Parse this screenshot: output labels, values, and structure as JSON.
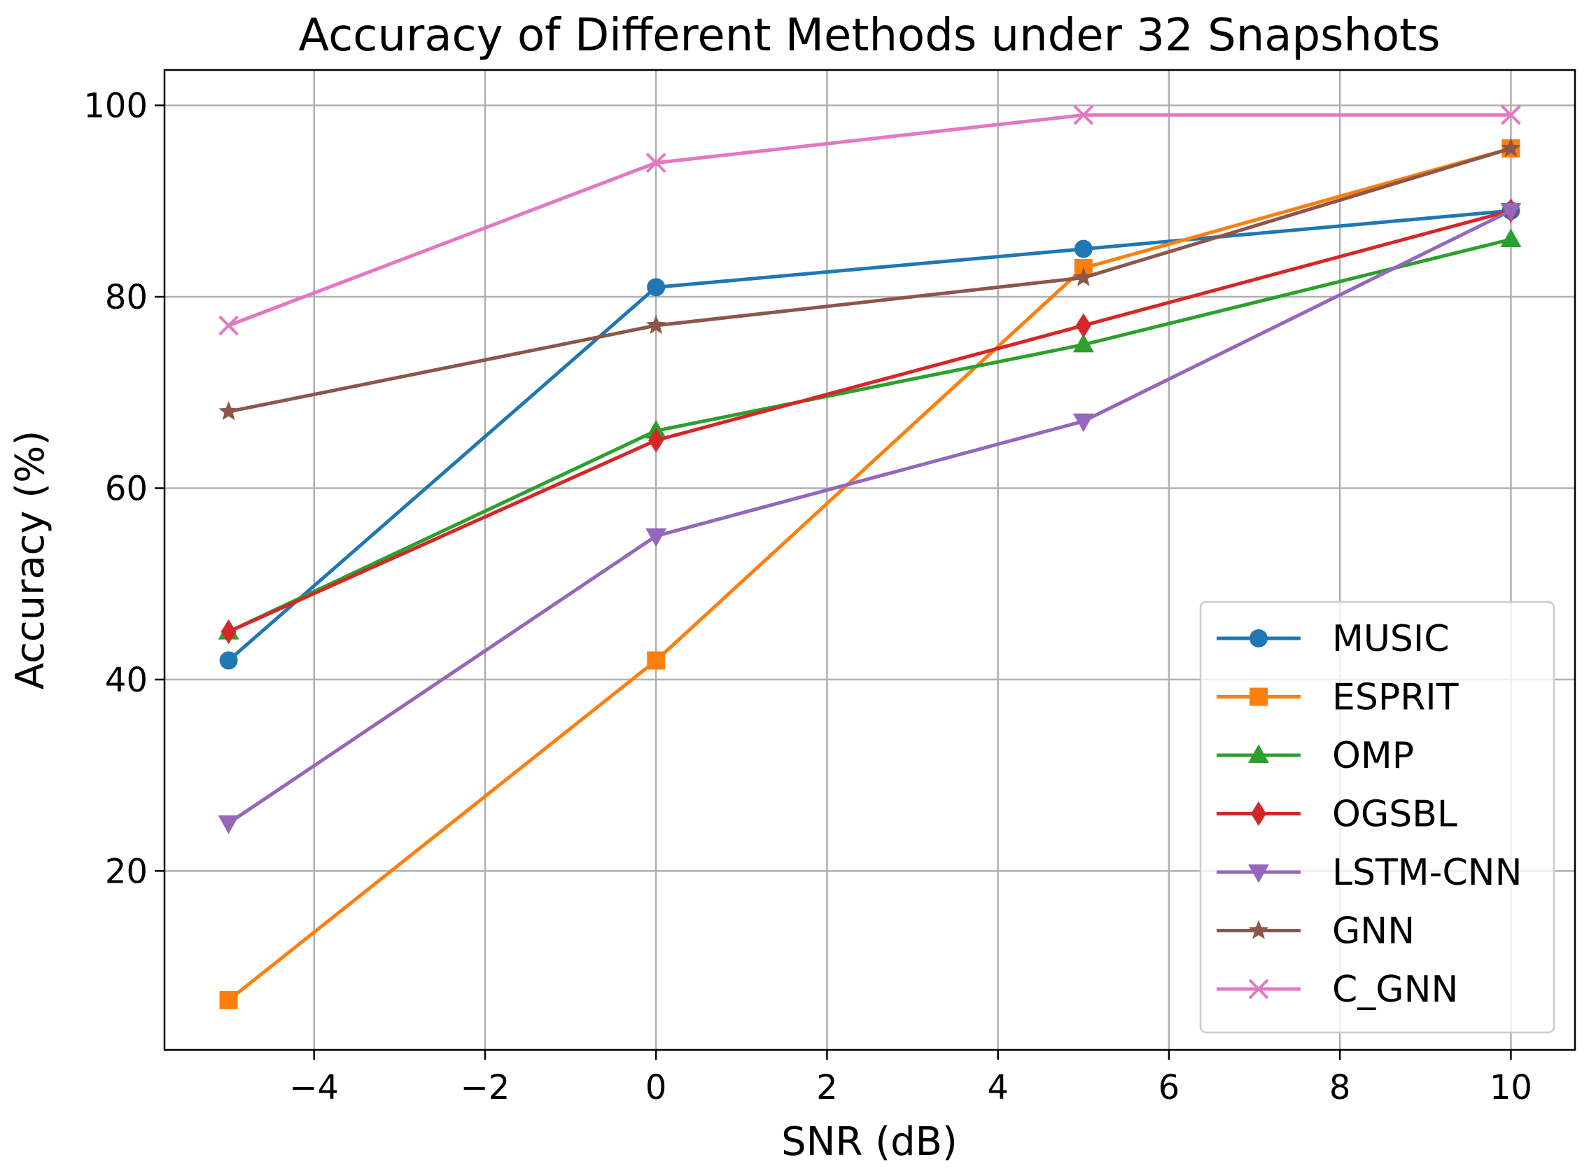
{
  "chart_data": {
    "type": "line",
    "title": "Accuracy of Different Methods under 32 Snapshots",
    "xlabel": "SNR (dB)",
    "ylabel": "Accuracy (%)",
    "x": [
      -5,
      0,
      5,
      10
    ],
    "xlim": [
      -5.75,
      10.75
    ],
    "ylim": [
      1.3,
      103.7
    ],
    "xticks": [
      -4,
      -2,
      0,
      2,
      4,
      6,
      8,
      10
    ],
    "xtick_labels": [
      "−4",
      "−2",
      "0",
      "2",
      "4",
      "6",
      "8",
      "10"
    ],
    "yticks": [
      20,
      40,
      60,
      80,
      100
    ],
    "ytick_labels": [
      "20",
      "40",
      "60",
      "80",
      "100"
    ],
    "grid": true,
    "legend_position": "lower-right",
    "series": [
      {
        "name": "MUSIC",
        "color": "#1f77b4",
        "marker": "circle",
        "values": [
          42,
          81,
          85,
          89
        ]
      },
      {
        "name": "ESPRIT",
        "color": "#ff7f0e",
        "marker": "square",
        "values": [
          6.5,
          42,
          83,
          95.5
        ]
      },
      {
        "name": "OMP",
        "color": "#2ca02c",
        "marker": "triangle-up",
        "values": [
          45,
          66,
          75,
          86
        ]
      },
      {
        "name": "OGSBL",
        "color": "#d62728",
        "marker": "diamond",
        "values": [
          45,
          65,
          77,
          89
        ]
      },
      {
        "name": "LSTM-CNN",
        "color": "#9467bd",
        "marker": "triangle-down",
        "values": [
          25,
          55,
          67,
          89
        ]
      },
      {
        "name": "GNN",
        "color": "#8c564b",
        "marker": "star",
        "values": [
          68,
          77,
          82,
          95.5
        ]
      },
      {
        "name": "C_GNN",
        "color": "#e377c2",
        "marker": "x",
        "values": [
          77,
          94,
          99,
          99
        ]
      }
    ]
  }
}
